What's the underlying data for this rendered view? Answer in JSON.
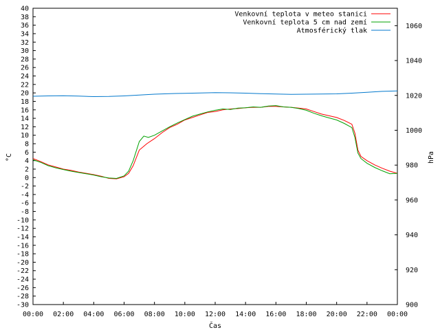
{
  "chart_data": {
    "type": "line",
    "xlabel": "Čas",
    "ylabel": "°C",
    "y2label": "hPa",
    "x_ticks": [
      "00:00",
      "02:00",
      "04:00",
      "06:00",
      "08:00",
      "10:00",
      "12:00",
      "14:00",
      "16:00",
      "18:00",
      "20:00",
      "22:00",
      "00:00"
    ],
    "xlim": [
      0,
      24
    ],
    "ylim": [
      -30,
      40
    ],
    "y2lim": [
      900,
      1070
    ],
    "y_ticks": [
      -30,
      -28,
      -26,
      -24,
      -22,
      -20,
      -18,
      -16,
      -14,
      -12,
      -10,
      -8,
      -6,
      -4,
      -2,
      0,
      2,
      4,
      6,
      8,
      10,
      12,
      14,
      16,
      18,
      20,
      22,
      24,
      26,
      28,
      30,
      32,
      34,
      36,
      38,
      40
    ],
    "y2_ticks": [
      900,
      920,
      940,
      960,
      980,
      1000,
      1020,
      1040,
      1060
    ],
    "grid": false,
    "legend_position": "top-right",
    "series": [
      {
        "name": "Venkovní teplota v meteo stanici",
        "axis": "y",
        "color": "#ff0000",
        "x": [
          0,
          0.5,
          1,
          1.5,
          2,
          2.5,
          3,
          3.5,
          4,
          4.5,
          5,
          5.5,
          6,
          6.3,
          6.6,
          7,
          7.5,
          8,
          8.5,
          9,
          9.5,
          10,
          10.5,
          11,
          11.5,
          12,
          12.5,
          13,
          13.5,
          14,
          14.5,
          15,
          15.5,
          16,
          16.5,
          17,
          17.5,
          18,
          18.5,
          19,
          19.5,
          20,
          20.5,
          21,
          21.2,
          21.4,
          21.6,
          22,
          22.5,
          23,
          23.5,
          24
        ],
        "y": [
          4.5,
          3.8,
          3.0,
          2.5,
          2.0,
          1.7,
          1.3,
          1.0,
          0.7,
          0.3,
          -0.2,
          -0.3,
          0.2,
          1.0,
          2.8,
          6.5,
          8.0,
          9.2,
          10.6,
          11.8,
          12.6,
          13.6,
          14.2,
          14.8,
          15.4,
          15.6,
          16.0,
          16.2,
          16.3,
          16.5,
          16.6,
          16.6,
          16.8,
          16.8,
          16.7,
          16.6,
          16.4,
          16.2,
          15.6,
          15.0,
          14.6,
          14.2,
          13.5,
          12.6,
          10.5,
          6.5,
          5.0,
          4.0,
          3.0,
          2.2,
          1.5,
          1.0
        ]
      },
      {
        "name": "Venkovní teplota 5 cm nad zemí",
        "axis": "y",
        "color": "#00a000",
        "x": [
          0,
          0.5,
          1,
          1.5,
          2,
          2.5,
          3,
          3.5,
          4,
          4.5,
          5,
          5.5,
          6,
          6.3,
          6.6,
          7,
          7.3,
          7.6,
          8,
          8.5,
          9,
          9.5,
          10,
          10.5,
          11,
          11.5,
          12,
          12.5,
          13,
          13.5,
          14,
          14.5,
          15,
          15.5,
          16,
          16.5,
          17,
          17.5,
          18,
          18.5,
          19,
          19.5,
          20,
          20.5,
          21,
          21.2,
          21.4,
          21.6,
          22,
          22.5,
          23,
          23.5,
          24
        ],
        "y": [
          4.2,
          3.6,
          2.8,
          2.3,
          1.9,
          1.5,
          1.2,
          0.9,
          0.6,
          0.2,
          -0.1,
          -0.2,
          0.4,
          1.5,
          4.0,
          8.5,
          9.8,
          9.5,
          10.0,
          11.0,
          12.0,
          12.9,
          13.7,
          14.5,
          15.0,
          15.5,
          15.9,
          16.2,
          16.1,
          16.4,
          16.5,
          16.7,
          16.6,
          16.9,
          17.0,
          16.7,
          16.6,
          16.3,
          15.9,
          15.2,
          14.6,
          14.1,
          13.6,
          12.8,
          11.8,
          9.5,
          5.8,
          4.5,
          3.4,
          2.4,
          1.6,
          0.9,
          1.0
        ]
      },
      {
        "name": "Atmosférický tlak",
        "axis": "y2",
        "color": "#0077cc",
        "x": [
          0,
          1,
          2,
          3,
          4,
          5,
          6,
          7,
          8,
          9,
          10,
          11,
          12,
          13,
          14,
          15,
          16,
          17,
          18,
          19,
          20,
          21,
          22,
          23,
          24
        ],
        "y": [
          1019.5,
          1019.7,
          1019.8,
          1019.6,
          1019.3,
          1019.4,
          1019.7,
          1020.2,
          1020.7,
          1021.0,
          1021.2,
          1021.4,
          1021.6,
          1021.5,
          1021.3,
          1021.0,
          1020.8,
          1020.6,
          1020.7,
          1020.8,
          1020.9,
          1021.3,
          1021.8,
          1022.3,
          1022.6
        ]
      }
    ]
  }
}
